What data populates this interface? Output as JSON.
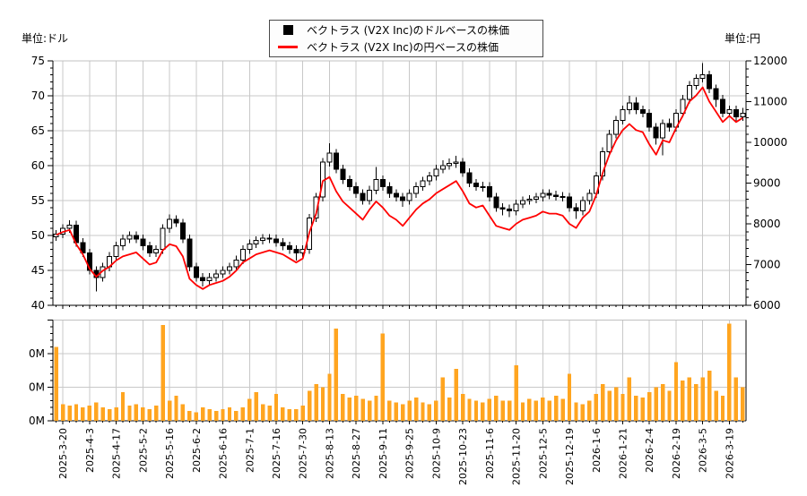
{
  "figure": {
    "units": {
      "left": "単位:ドル",
      "right": "単位:円"
    }
  },
  "legend": {
    "items": [
      {
        "marker": "black-square",
        "color": "#000000",
        "label": "ベクトラス (V2X Inc)のドルベースの株価"
      },
      {
        "marker": "red-line",
        "color": "#ff0000",
        "label": "ベクトラス (V2X Inc)の円ベースの株価"
      }
    ]
  },
  "chart_data": [
    {
      "type": "candlestick",
      "panel": "price",
      "x_tick_labels": [
        "2025-3-20",
        "2025-4-3",
        "2025-4-17",
        "2025-5-2",
        "2025-5-16",
        "2025-6-2",
        "2025-6-16",
        "2025-7-1",
        "2025-7-16",
        "2025-7-30",
        "2025-8-13",
        "2025-8-27",
        "2025-9-11",
        "2025-9-25",
        "2025-10-9",
        "2025-10-23",
        "2025-11-6",
        "2025-11-20",
        "2025-12-5",
        "2025-12-19",
        "2026-1-6",
        "2026-1-21",
        "2026-2-4",
        "2026-2-19",
        "2026-3-5",
        "2026-3-19"
      ],
      "bars_per_label": 4,
      "grid": true,
      "left_axis": {
        "unit": "単位:ドル",
        "range": [
          40,
          75
        ],
        "ticks": [
          40,
          45,
          50,
          55,
          60,
          65,
          70,
          75
        ],
        "minor_step": 1
      },
      "right_axis": {
        "unit": "単位:円",
        "range": [
          6000,
          12000
        ],
        "ticks": [
          6000,
          7000,
          8000,
          9000,
          10000,
          11000,
          12000
        ],
        "minor_step": 200
      },
      "series": [
        {
          "name": "ベクトラス (V2X Inc)のドルベースの株価",
          "type": "candlestick",
          "axis": "left",
          "up_color": "#ffffff",
          "down_color": "#000000",
          "outline_color": "#000000",
          "ohlc": [
            [
              49.8,
              50.8,
              49.2,
              50.2
            ],
            [
              50.2,
              51.6,
              49.6,
              51.0
            ],
            [
              51.0,
              52.2,
              50.4,
              51.5
            ],
            [
              51.5,
              52.1,
              48.4,
              49.0
            ],
            [
              49.0,
              49.6,
              46.9,
              47.5
            ],
            [
              47.5,
              48.1,
              44.4,
              45.0
            ],
            [
              45.0,
              45.6,
              42.0,
              44.0
            ],
            [
              44.0,
              46.1,
              43.4,
              45.5
            ],
            [
              45.5,
              47.6,
              44.9,
              47.0
            ],
            [
              47.0,
              49.1,
              46.4,
              48.5
            ],
            [
              48.5,
              50.1,
              47.9,
              49.5
            ],
            [
              49.5,
              50.6,
              48.9,
              50.0
            ],
            [
              50.0,
              50.6,
              48.9,
              49.5
            ],
            [
              49.5,
              50.1,
              47.9,
              48.5
            ],
            [
              48.5,
              49.1,
              46.9,
              47.5
            ],
            [
              47.5,
              48.6,
              46.9,
              48.0
            ],
            [
              48.0,
              51.6,
              47.4,
              51.0
            ],
            [
              51.0,
              53.0,
              50.4,
              52.3
            ],
            [
              52.3,
              52.9,
              51.2,
              51.8
            ],
            [
              51.8,
              52.4,
              48.9,
              49.5
            ],
            [
              49.5,
              50.1,
              44.9,
              45.5
            ],
            [
              45.5,
              46.1,
              43.4,
              44.0
            ],
            [
              44.0,
              44.6,
              42.7,
              43.5
            ],
            [
              43.5,
              44.6,
              42.9,
              44.0
            ],
            [
              44.0,
              45.1,
              43.4,
              44.5
            ],
            [
              44.5,
              45.6,
              43.9,
              45.0
            ],
            [
              45.0,
              46.1,
              44.4,
              45.5
            ],
            [
              45.5,
              47.1,
              44.9,
              46.5
            ],
            [
              46.5,
              48.6,
              45.9,
              48.0
            ],
            [
              48.0,
              49.4,
              47.4,
              48.8
            ],
            [
              48.8,
              49.9,
              48.2,
              49.3
            ],
            [
              49.3,
              50.2,
              48.7,
              49.6
            ],
            [
              49.6,
              50.2,
              48.9,
              49.5
            ],
            [
              49.5,
              50.1,
              48.4,
              49.0
            ],
            [
              49.0,
              49.6,
              47.9,
              48.5
            ],
            [
              48.5,
              49.1,
              47.4,
              48.0
            ],
            [
              48.0,
              48.6,
              46.4,
              47.5
            ],
            [
              47.5,
              48.6,
              46.9,
              48.0
            ],
            [
              48.0,
              53.1,
              47.4,
              52.5
            ],
            [
              52.5,
              56.1,
              51.9,
              55.5
            ],
            [
              55.5,
              61.1,
              54.9,
              60.5
            ],
            [
              60.5,
              63.2,
              59.9,
              61.8
            ],
            [
              61.8,
              62.4,
              58.9,
              59.5
            ],
            [
              59.5,
              60.1,
              57.4,
              58.0
            ],
            [
              58.0,
              58.6,
              56.4,
              57.0
            ],
            [
              57.0,
              57.6,
              55.4,
              56.0
            ],
            [
              56.0,
              56.6,
              54.4,
              55.0
            ],
            [
              55.0,
              57.1,
              54.4,
              56.5
            ],
            [
              56.5,
              59.8,
              55.9,
              58.0
            ],
            [
              58.0,
              58.6,
              56.4,
              57.0
            ],
            [
              57.0,
              57.6,
              55.4,
              56.0
            ],
            [
              56.0,
              56.6,
              54.9,
              55.5
            ],
            [
              55.5,
              56.1,
              54.1,
              55.0
            ],
            [
              55.0,
              56.6,
              54.4,
              56.0
            ],
            [
              56.0,
              57.6,
              55.4,
              57.0
            ],
            [
              57.0,
              58.4,
              56.4,
              57.8
            ],
            [
              57.8,
              59.1,
              57.2,
              58.5
            ],
            [
              58.5,
              60.1,
              57.9,
              59.5
            ],
            [
              59.5,
              60.8,
              58.9,
              60.0
            ],
            [
              60.0,
              61.0,
              59.4,
              60.3
            ],
            [
              60.3,
              61.4,
              59.7,
              60.5
            ],
            [
              60.5,
              61.1,
              58.4,
              59.0
            ],
            [
              59.0,
              59.6,
              56.9,
              57.5
            ],
            [
              57.5,
              58.1,
              56.4,
              57.0
            ],
            [
              57.0,
              57.7,
              56.3,
              57.0
            ],
            [
              57.0,
              57.6,
              54.9,
              55.5
            ],
            [
              55.5,
              56.1,
              53.4,
              54.0
            ],
            [
              54.0,
              54.6,
              52.9,
              53.8
            ],
            [
              53.8,
              54.4,
              52.6,
              53.5
            ],
            [
              53.5,
              55.1,
              52.9,
              54.5
            ],
            [
              54.5,
              55.6,
              53.9,
              55.0
            ],
            [
              55.0,
              55.8,
              54.4,
              55.2
            ],
            [
              55.2,
              56.1,
              54.6,
              55.5
            ],
            [
              55.5,
              56.6,
              54.9,
              56.0
            ],
            [
              56.0,
              56.6,
              55.2,
              55.8
            ],
            [
              55.8,
              56.4,
              55.0,
              55.6
            ],
            [
              55.6,
              56.2,
              54.9,
              55.5
            ],
            [
              55.5,
              56.1,
              53.4,
              54.0
            ],
            [
              54.0,
              54.6,
              52.4,
              53.5
            ],
            [
              53.5,
              55.6,
              52.9,
              55.0
            ],
            [
              55.0,
              56.6,
              54.4,
              56.0
            ],
            [
              56.0,
              59.1,
              55.4,
              58.5
            ],
            [
              58.5,
              62.6,
              57.9,
              62.0
            ],
            [
              62.0,
              65.1,
              61.4,
              64.5
            ],
            [
              64.5,
              67.1,
              63.9,
              66.5
            ],
            [
              66.5,
              68.6,
              65.9,
              68.0
            ],
            [
              68.0,
              70.0,
              67.4,
              69.0
            ],
            [
              69.0,
              69.8,
              67.4,
              68.0
            ],
            [
              68.0,
              68.6,
              66.9,
              67.5
            ],
            [
              67.5,
              68.1,
              64.9,
              65.5
            ],
            [
              65.5,
              66.1,
              63.0,
              64.0
            ],
            [
              64.0,
              66.6,
              61.5,
              66.0
            ],
            [
              66.0,
              66.7,
              64.9,
              65.5
            ],
            [
              65.5,
              68.1,
              64.9,
              67.5
            ],
            [
              67.5,
              70.1,
              66.9,
              69.5
            ],
            [
              69.5,
              72.1,
              68.9,
              71.5
            ],
            [
              71.5,
              73.1,
              70.9,
              72.5
            ],
            [
              72.5,
              74.7,
              71.9,
              73.0
            ],
            [
              73.0,
              73.6,
              70.4,
              71.0
            ],
            [
              71.0,
              71.6,
              68.4,
              69.5
            ],
            [
              69.5,
              70.1,
              66.9,
              67.5
            ],
            [
              67.5,
              68.6,
              66.9,
              68.0
            ],
            [
              68.0,
              68.6,
              66.4,
              67.0
            ],
            [
              67.0,
              68.3,
              66.4,
              67.5
            ]
          ]
        },
        {
          "name": "ベクトラス (V2X Inc)の円ベースの株価",
          "type": "line",
          "axis": "right",
          "color": "#ff0000",
          "values": [
            7730,
            7800,
            7850,
            7500,
            7250,
            6900,
            6700,
            6850,
            6950,
            7100,
            7200,
            7250,
            7300,
            7150,
            7000,
            7050,
            7350,
            7500,
            7450,
            7200,
            6650,
            6500,
            6400,
            6500,
            6550,
            6600,
            6700,
            6850,
            7050,
            7150,
            7250,
            7300,
            7350,
            7300,
            7250,
            7150,
            7050,
            7150,
            7800,
            8250,
            9050,
            9150,
            8800,
            8550,
            8400,
            8250,
            8100,
            8350,
            8550,
            8400,
            8200,
            8100,
            7950,
            8150,
            8350,
            8500,
            8600,
            8750,
            8850,
            8950,
            9050,
            8800,
            8500,
            8400,
            8450,
            8200,
            7950,
            7900,
            7850,
            8000,
            8100,
            8150,
            8200,
            8300,
            8250,
            8250,
            8200,
            8000,
            7900,
            8150,
            8300,
            8700,
            9250,
            9700,
            10050,
            10300,
            10450,
            10300,
            10250,
            9950,
            9700,
            10050,
            10000,
            10350,
            10650,
            11000,
            11150,
            11350,
            11000,
            10750,
            10500,
            10650,
            10500,
            10600
          ]
        }
      ]
    },
    {
      "type": "bar",
      "panel": "volume",
      "color": "#FFA520",
      "y_tick_labels": [
        "0M",
        "0M",
        "0M"
      ],
      "y_range_millions": [
        0,
        0.6
      ],
      "y_major_step_millions": 0.2,
      "y_minor_step_millions": 0.04,
      "values_millions": [
        0.44,
        0.1,
        0.09,
        0.1,
        0.08,
        0.09,
        0.11,
        0.08,
        0.07,
        0.08,
        0.17,
        0.09,
        0.1,
        0.08,
        0.07,
        0.09,
        0.57,
        0.12,
        0.15,
        0.1,
        0.06,
        0.05,
        0.08,
        0.07,
        0.06,
        0.07,
        0.08,
        0.06,
        0.08,
        0.13,
        0.17,
        0.1,
        0.09,
        0.16,
        0.08,
        0.07,
        0.07,
        0.09,
        0.18,
        0.22,
        0.2,
        0.28,
        0.55,
        0.16,
        0.14,
        0.15,
        0.13,
        0.12,
        0.15,
        0.52,
        0.12,
        0.11,
        0.1,
        0.12,
        0.14,
        0.11,
        0.1,
        0.12,
        0.26,
        0.14,
        0.31,
        0.16,
        0.13,
        0.12,
        0.11,
        0.13,
        0.15,
        0.12,
        0.12,
        0.33,
        0.11,
        0.13,
        0.12,
        0.14,
        0.12,
        0.15,
        0.13,
        0.28,
        0.11,
        0.1,
        0.12,
        0.16,
        0.22,
        0.18,
        0.2,
        0.16,
        0.26,
        0.15,
        0.14,
        0.17,
        0.2,
        0.22,
        0.18,
        0.35,
        0.24,
        0.26,
        0.22,
        0.26,
        0.3,
        0.18,
        0.15,
        0.58,
        0.26,
        0.2
      ]
    }
  ],
  "colors": {
    "grid": "#c8c8c8",
    "frame": "#c0c0c0",
    "axis": "#000000",
    "candle_up": "#ffffff",
    "candle_down": "#000000",
    "yen_line": "#ff0000",
    "volume_bar": "#FFA520",
    "legend_border": "#4a4a4a",
    "legend_bg": "#fdfdfd"
  }
}
